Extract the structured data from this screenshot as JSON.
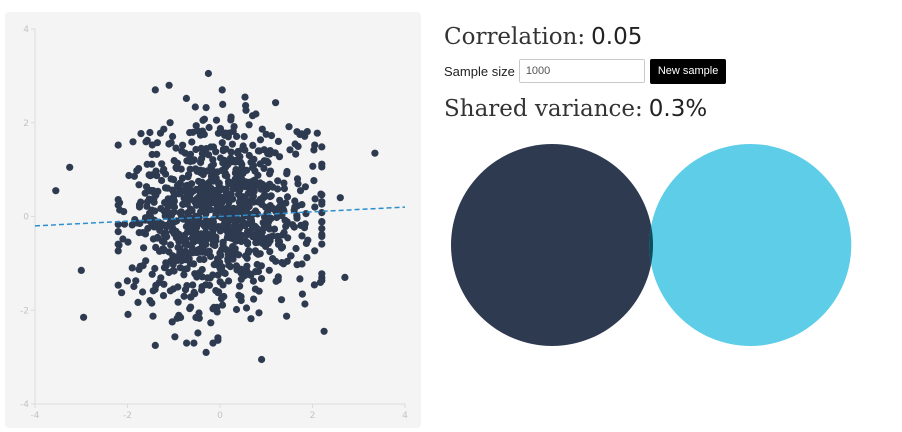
{
  "correlation": {
    "label": "Correlation:",
    "value": "0.05"
  },
  "sample": {
    "label": "Sample size",
    "input_value": "1000",
    "button_label": "New sample"
  },
  "shared_variance": {
    "label": "Shared variance:",
    "value": "0.3%"
  },
  "colors": {
    "panel_bg": "#f4f4f4",
    "points": "#2e3a4f",
    "regression_line": "#2b8fcf",
    "circle_x": "#2e3a4f",
    "circle_y": "#5ecde8",
    "overlap": "#0d4d5c"
  },
  "chart_data": {
    "type": "scatter",
    "title": "",
    "xlabel": "",
    "ylabel": "",
    "xlim": [
      -4,
      4
    ],
    "ylim": [
      -4,
      4
    ],
    "x_ticks": [
      "-4",
      "-2",
      "0",
      "2",
      "4"
    ],
    "y_ticks": [
      "4",
      "2",
      "0",
      "-2",
      "-4"
    ],
    "n_points": 1000,
    "random_seed": 7,
    "regression": {
      "slope": 0.05,
      "intercept": 0.0
    },
    "outlier_points": [
      [
        -3.55,
        0.55
      ],
      [
        -3.25,
        1.05
      ],
      [
        3.35,
        1.35
      ],
      [
        2.7,
        -1.3
      ],
      [
        -2.95,
        -2.15
      ],
      [
        -0.25,
        3.05
      ],
      [
        0.9,
        -3.05
      ],
      [
        -0.3,
        -2.9
      ],
      [
        -1.4,
        -2.75
      ],
      [
        2.25,
        -2.45
      ],
      [
        -1.4,
        2.7
      ],
      [
        -1.1,
        2.8
      ],
      [
        2.6,
        0.4
      ],
      [
        -3.0,
        -1.15
      ],
      [
        2.05,
        0.2
      ]
    ]
  },
  "venn": {
    "shared_variance_fraction": 0.003
  }
}
